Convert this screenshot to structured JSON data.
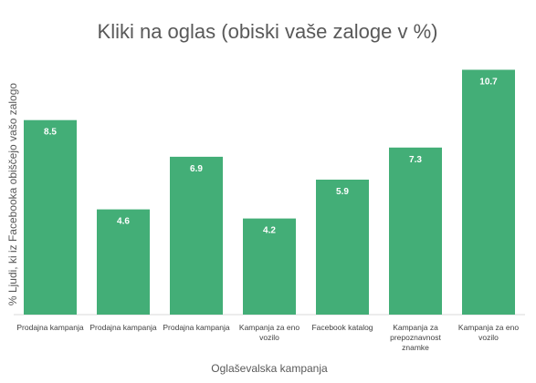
{
  "chart_data": {
    "type": "bar",
    "title": "Kliki na oglas (obiski vaše zaloge v %)",
    "xlabel": "Oglaševalska kampanja",
    "ylabel": "% Ljudi, ki iz Facebooka obiščejo vašo zalogo",
    "ylim": [
      0,
      11
    ],
    "grid": false,
    "bar_color": "#43AE77",
    "categories": [
      [
        "Prodajna kampanja"
      ],
      [
        "Prodajna kampanja"
      ],
      [
        "Prodajna kampanja"
      ],
      [
        "Kampanja za eno",
        "vozilo"
      ],
      [
        "Facebook katalog"
      ],
      [
        "Kampanja za",
        "prepoznavnost",
        "znamke"
      ],
      [
        "Kampanja za eno",
        "vozilo"
      ]
    ],
    "values": [
      8.5,
      4.6,
      6.9,
      4.2,
      5.9,
      7.3,
      10.7
    ],
    "data_labels": [
      "8.5",
      "4.6",
      "6.9",
      "4.2",
      "5.9",
      "7.3",
      "10.7"
    ]
  }
}
